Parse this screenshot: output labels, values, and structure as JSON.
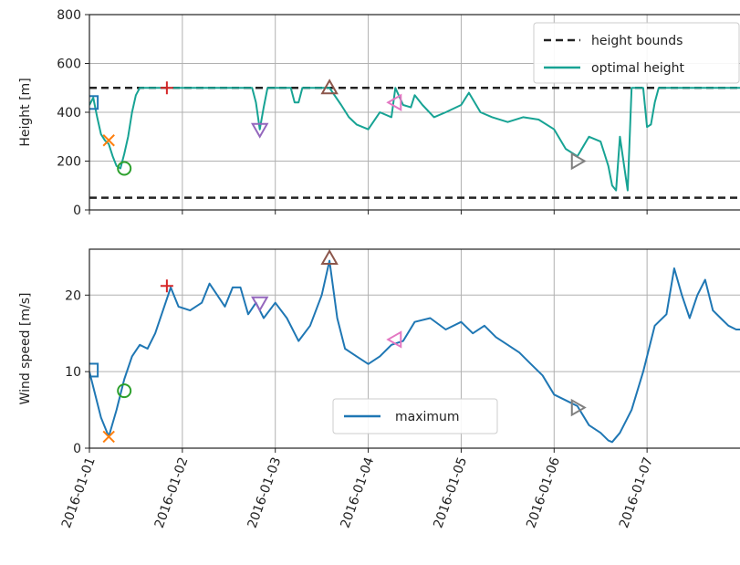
{
  "chart_data": [
    {
      "type": "line",
      "title": "",
      "xlabel": "",
      "ylabel": "Height [m]",
      "xlim": [
        "2016-01-01",
        "2016-01-08"
      ],
      "ylim": [
        0,
        800
      ],
      "yticks": [
        0,
        200,
        400,
        600,
        800
      ],
      "grid": true,
      "legend": {
        "placement": "top-right",
        "entries": [
          {
            "label": "height bounds",
            "style": "dashed",
            "color": "#222222"
          },
          {
            "label": "optimal height",
            "style": "solid",
            "color": "#17a394"
          }
        ]
      },
      "series": [
        {
          "name": "height bounds",
          "color": "#222222",
          "x": [
            "2016-01-01",
            "2016-01-08"
          ],
          "values_upper": [
            500,
            500
          ],
          "values_lower": [
            50,
            50
          ]
        },
        {
          "name": "optimal height",
          "color": "#17a394",
          "x": [
            "2016-01-01 00:00",
            "2016-01-01 01:00",
            "2016-01-01 02:00",
            "2016-01-01 03:00",
            "2016-01-01 04:00",
            "2016-01-01 05:00",
            "2016-01-01 06:00",
            "2016-01-01 07:00",
            "2016-01-01 08:00",
            "2016-01-01 09:00",
            "2016-01-01 10:00",
            "2016-01-01 11:00",
            "2016-01-01 12:00",
            "2016-01-01 13:00",
            "2016-01-01 16:00",
            "2016-01-01 20:00",
            "2016-01-02 04:00",
            "2016-01-02 12:00",
            "2016-01-02 18:00",
            "2016-01-02 19:00",
            "2016-01-02 20:00",
            "2016-01-02 21:00",
            "2016-01-02 22:00",
            "2016-01-03 04:00",
            "2016-01-03 05:00",
            "2016-01-03 06:00",
            "2016-01-03 07:00",
            "2016-01-03 09:00",
            "2016-01-03 14:00",
            "2016-01-03 17:00",
            "2016-01-03 19:00",
            "2016-01-03 21:00",
            "2016-01-04 00:00",
            "2016-01-04 03:00",
            "2016-01-04 06:00",
            "2016-01-04 07:00",
            "2016-01-04 09:00",
            "2016-01-04 11:00",
            "2016-01-04 12:00",
            "2016-01-04 14:00",
            "2016-01-04 17:00",
            "2016-01-04 20:00",
            "2016-01-05 00:00",
            "2016-01-05 02:00",
            "2016-01-05 05:00",
            "2016-01-05 08:00",
            "2016-01-05 12:00",
            "2016-01-05 16:00",
            "2016-01-05 20:00",
            "2016-01-06 00:00",
            "2016-01-06 03:00",
            "2016-01-06 06:00",
            "2016-01-06 09:00",
            "2016-01-06 12:00",
            "2016-01-06 13:00",
            "2016-01-06 14:00",
            "2016-01-06 15:00",
            "2016-01-06 16:00",
            "2016-01-06 17:00",
            "2016-01-06 19:00",
            "2016-01-06 20:00",
            "2016-01-06 21:00",
            "2016-01-06 22:00",
            "2016-01-06 23:00",
            "2016-01-07 00:00",
            "2016-01-07 01:00",
            "2016-01-07 02:00",
            "2016-01-07 03:00",
            "2016-01-07 06:00",
            "2016-01-07 12:00",
            "2016-01-07 18:00",
            "2016-01-08 00:00"
          ],
          "values": [
            430,
            460,
            380,
            310,
            285,
            270,
            220,
            180,
            170,
            230,
            300,
            400,
            470,
            500,
            500,
            500,
            500,
            500,
            500,
            440,
            330,
            420,
            500,
            500,
            440,
            440,
            500,
            500,
            500,
            430,
            380,
            350,
            330,
            400,
            380,
            500,
            430,
            420,
            470,
            430,
            380,
            400,
            430,
            480,
            400,
            380,
            360,
            380,
            370,
            330,
            250,
            220,
            300,
            280,
            230,
            180,
            100,
            80,
            300,
            80,
            500,
            500,
            500,
            500,
            340,
            350,
            440,
            500,
            500,
            500,
            500,
            500
          ]
        }
      ],
      "markers": [
        {
          "shape": "square",
          "color": "#1f77b4",
          "x": "2016-01-01 00:30",
          "y": 440
        },
        {
          "shape": "x",
          "color": "#ff7f0e",
          "x": "2016-01-01 05:00",
          "y": 285
        },
        {
          "shape": "circle",
          "color": "#2ca02c",
          "x": "2016-01-01 09:00",
          "y": 170
        },
        {
          "shape": "plus",
          "color": "#d62728",
          "x": "2016-01-01 20:00",
          "y": 500
        },
        {
          "shape": "triangle-down",
          "color": "#9467bd",
          "x": "2016-01-02 20:00",
          "y": 330
        },
        {
          "shape": "triangle-up",
          "color": "#8c564b",
          "x": "2016-01-03 14:00",
          "y": 500
        },
        {
          "shape": "triangle-left",
          "color": "#e377c2",
          "x": "2016-01-04 07:00",
          "y": 440
        },
        {
          "shape": "triangle-right",
          "color": "#7f7f7f",
          "x": "2016-01-06 06:00",
          "y": 200
        }
      ]
    },
    {
      "type": "line",
      "title": "",
      "xlabel": "",
      "ylabel": "Wind speed [m/s]",
      "xlim": [
        "2016-01-01",
        "2016-01-08"
      ],
      "ylim": [
        0,
        26
      ],
      "yticks": [
        0,
        10,
        20
      ],
      "grid": true,
      "xticks": [
        "2016-01-01",
        "2016-01-02",
        "2016-01-03",
        "2016-01-04",
        "2016-01-05",
        "2016-01-06",
        "2016-01-07"
      ],
      "legend": {
        "placement": "bottom-center",
        "entries": [
          {
            "label": "maximum",
            "style": "solid",
            "color": "#1f77b4"
          }
        ]
      },
      "series": [
        {
          "name": "maximum",
          "color": "#1f77b4",
          "x": [
            "2016-01-01 00:00",
            "2016-01-01 01:00",
            "2016-01-01 03:00",
            "2016-01-01 05:00",
            "2016-01-01 07:00",
            "2016-01-01 09:00",
            "2016-01-01 11:00",
            "2016-01-01 13:00",
            "2016-01-01 15:00",
            "2016-01-01 17:00",
            "2016-01-01 19:00",
            "2016-01-01 21:00",
            "2016-01-01 23:00",
            "2016-01-02 02:00",
            "2016-01-02 05:00",
            "2016-01-02 07:00",
            "2016-01-02 09:00",
            "2016-01-02 11:00",
            "2016-01-02 13:00",
            "2016-01-02 15:00",
            "2016-01-02 17:00",
            "2016-01-02 19:00",
            "2016-01-02 21:00",
            "2016-01-03 00:00",
            "2016-01-03 03:00",
            "2016-01-03 06:00",
            "2016-01-03 09:00",
            "2016-01-03 12:00",
            "2016-01-03 14:00",
            "2016-01-03 16:00",
            "2016-01-03 18:00",
            "2016-01-03 21:00",
            "2016-01-04 00:00",
            "2016-01-04 03:00",
            "2016-01-04 06:00",
            "2016-01-04 09:00",
            "2016-01-04 12:00",
            "2016-01-04 16:00",
            "2016-01-04 20:00",
            "2016-01-05 00:00",
            "2016-01-05 03:00",
            "2016-01-05 06:00",
            "2016-01-05 09:00",
            "2016-01-05 12:00",
            "2016-01-05 15:00",
            "2016-01-05 18:00",
            "2016-01-05 21:00",
            "2016-01-06 00:00",
            "2016-01-06 04:00",
            "2016-01-06 06:00",
            "2016-01-06 09:00",
            "2016-01-06 12:00",
            "2016-01-06 14:00",
            "2016-01-06 15:00",
            "2016-01-06 17:00",
            "2016-01-06 20:00",
            "2016-01-06 23:00",
            "2016-01-07 02:00",
            "2016-01-07 05:00",
            "2016-01-07 07:00",
            "2016-01-07 09:00",
            "2016-01-07 11:00",
            "2016-01-07 13:00",
            "2016-01-07 15:00",
            "2016-01-07 17:00",
            "2016-01-07 19:00",
            "2016-01-07 21:00",
            "2016-01-07 23:00",
            "2016-01-08 00:00"
          ],
          "values": [
            10,
            8,
            4,
            1.5,
            5,
            9,
            12,
            13.5,
            13,
            15,
            18,
            21,
            18.5,
            18,
            19,
            21.5,
            20,
            18.5,
            21,
            21,
            17.5,
            19,
            17,
            19,
            17,
            14,
            16,
            20,
            24.5,
            17,
            13,
            12,
            11,
            12,
            13.5,
            14,
            16.5,
            17,
            15.5,
            16.5,
            15,
            16,
            14.5,
            13.5,
            12.5,
            11,
            9.5,
            7,
            6,
            5.5,
            3,
            2,
            1,
            0.8,
            2,
            5,
            10,
            16,
            17.5,
            23.5,
            20,
            17,
            20,
            22,
            18,
            17,
            16,
            15.5,
            15.5
          ]
        }
      ],
      "markers": [
        {
          "shape": "square",
          "color": "#1f77b4",
          "x": "2016-01-01 00:30",
          "y": 10.2
        },
        {
          "shape": "x",
          "color": "#ff7f0e",
          "x": "2016-01-01 05:00",
          "y": 1.5
        },
        {
          "shape": "circle",
          "color": "#2ca02c",
          "x": "2016-01-01 09:00",
          "y": 7.5
        },
        {
          "shape": "plus",
          "color": "#d62728",
          "x": "2016-01-01 20:00",
          "y": 21.2
        },
        {
          "shape": "triangle-down",
          "color": "#9467bd",
          "x": "2016-01-02 20:00",
          "y": 19
        },
        {
          "shape": "triangle-up",
          "color": "#8c564b",
          "x": "2016-01-03 14:00",
          "y": 24.8
        },
        {
          "shape": "triangle-left",
          "color": "#e377c2",
          "x": "2016-01-04 07:00",
          "y": 14.2
        },
        {
          "shape": "triangle-right",
          "color": "#7f7f7f",
          "x": "2016-01-06 06:00",
          "y": 5.3
        }
      ]
    }
  ]
}
